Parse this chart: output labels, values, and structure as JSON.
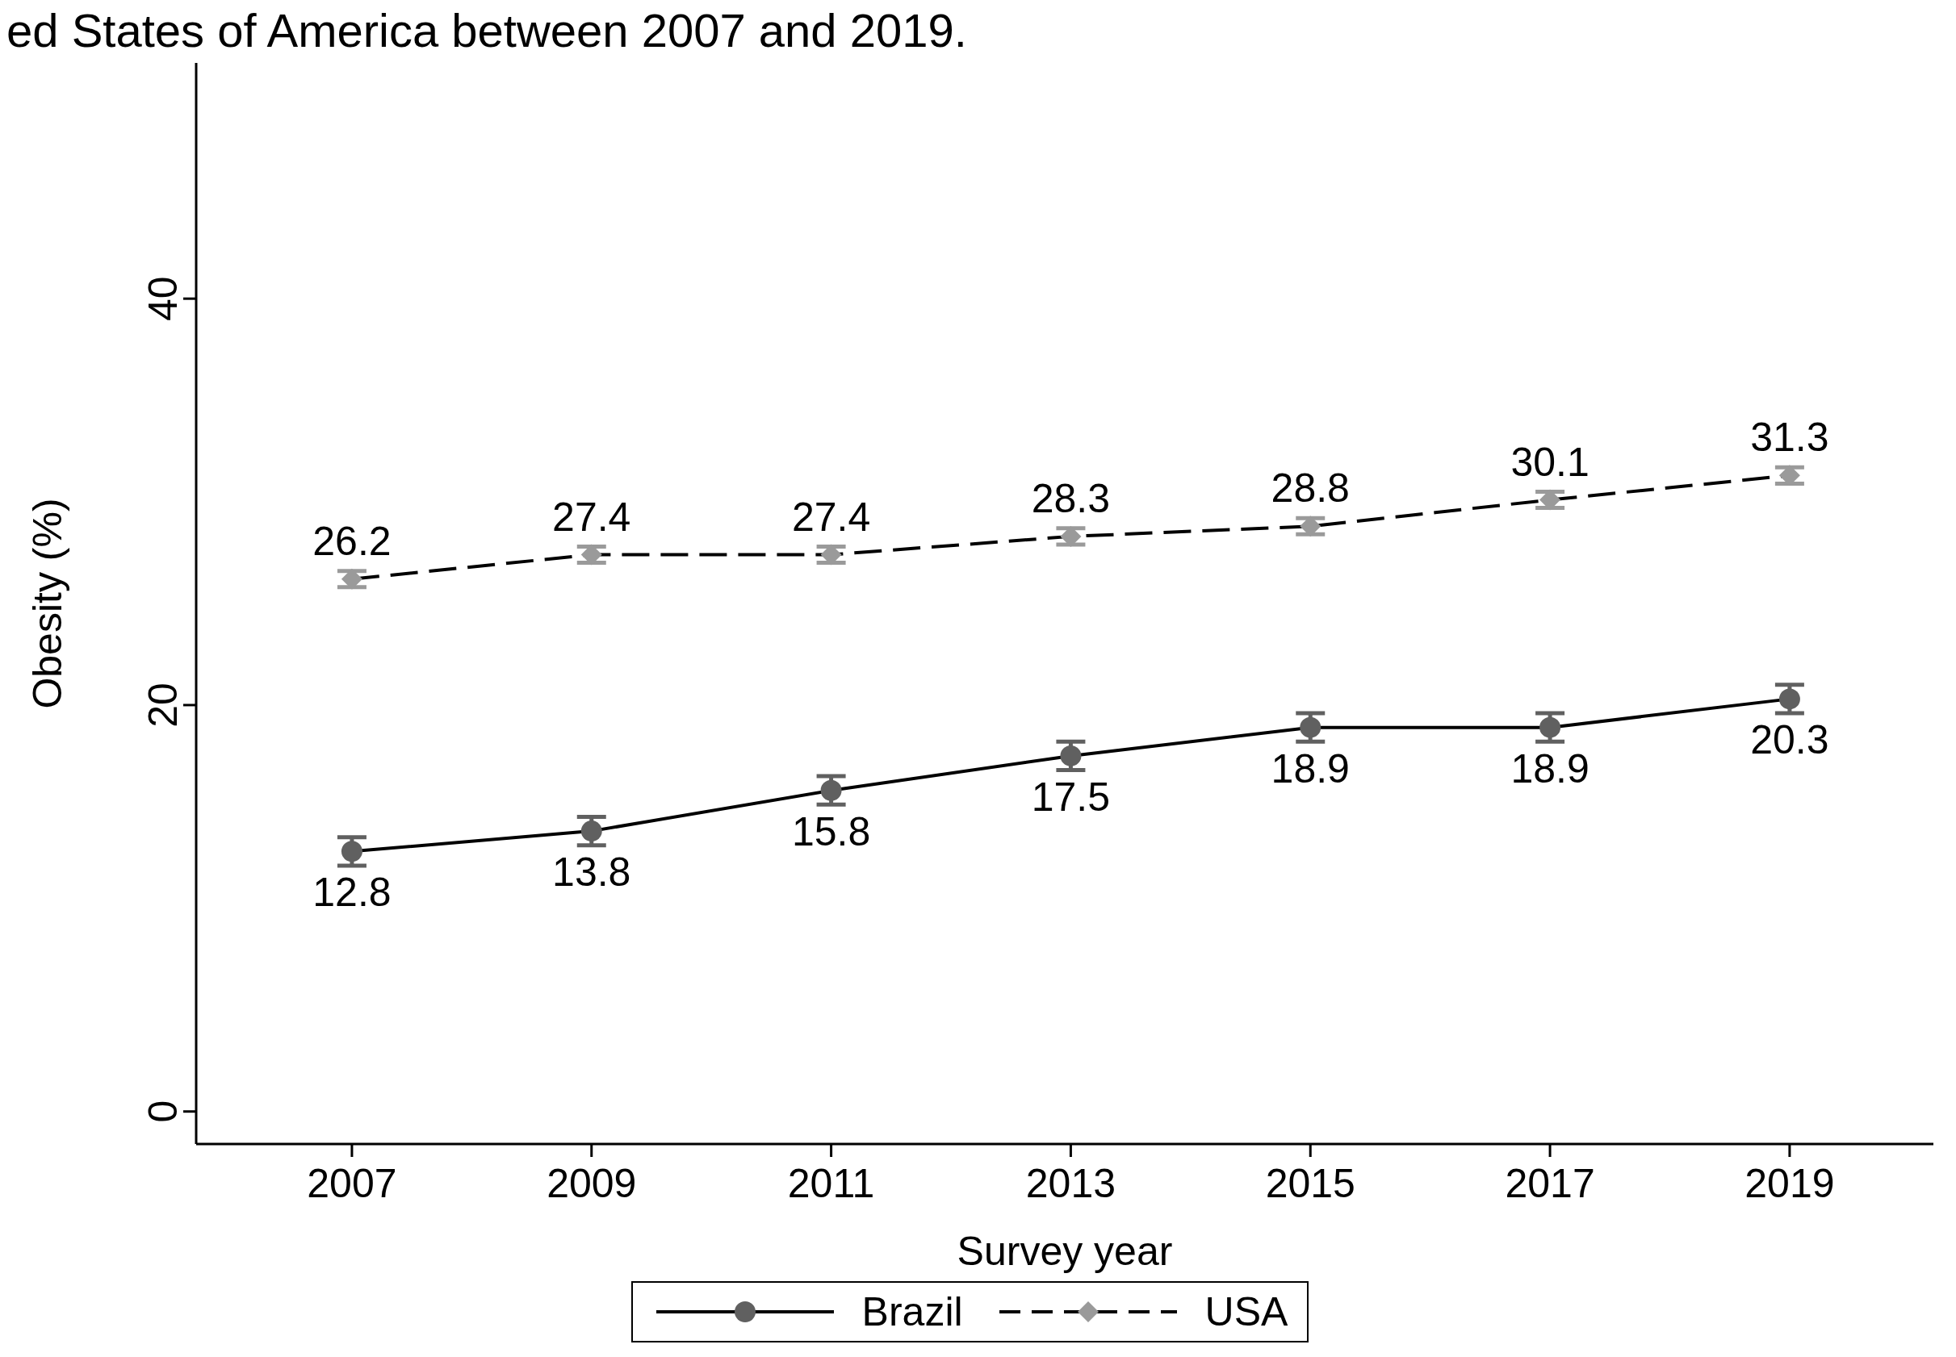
{
  "chart_data": {
    "type": "line",
    "title": "ed States of America between 2007 and 2019.",
    "xlabel": "Survey year",
    "ylabel": "Obesity (%)",
    "x": [
      2007,
      2009,
      2011,
      2013,
      2015,
      2017,
      2019
    ],
    "series": [
      {
        "name": "Brazil",
        "color": "#606060",
        "values": [
          12.8,
          13.8,
          15.8,
          17.5,
          18.9,
          18.9,
          20.3
        ],
        "errors": [
          0.7,
          0.7,
          0.7,
          0.7,
          0.7,
          0.7,
          0.7
        ],
        "marker": "circle",
        "line_style": "solid"
      },
      {
        "name": "USA",
        "color": "#9a9a9a",
        "values": [
          26.2,
          27.4,
          27.4,
          28.3,
          28.8,
          30.1,
          31.3
        ],
        "errors": [
          0.4,
          0.4,
          0.4,
          0.4,
          0.4,
          0.4,
          0.4
        ],
        "marker": "diamond",
        "line_style": "dashed"
      }
    ],
    "xlim": [
      2005.7,
      2020.2
    ],
    "xticks": [
      2007,
      2009,
      2011,
      2013,
      2015,
      2017,
      2019
    ],
    "ylim": [
      -1.6,
      51.6
    ],
    "yticks": [
      0,
      20,
      40
    ],
    "data_labels": true,
    "grid": false,
    "legend": "bottom"
  }
}
